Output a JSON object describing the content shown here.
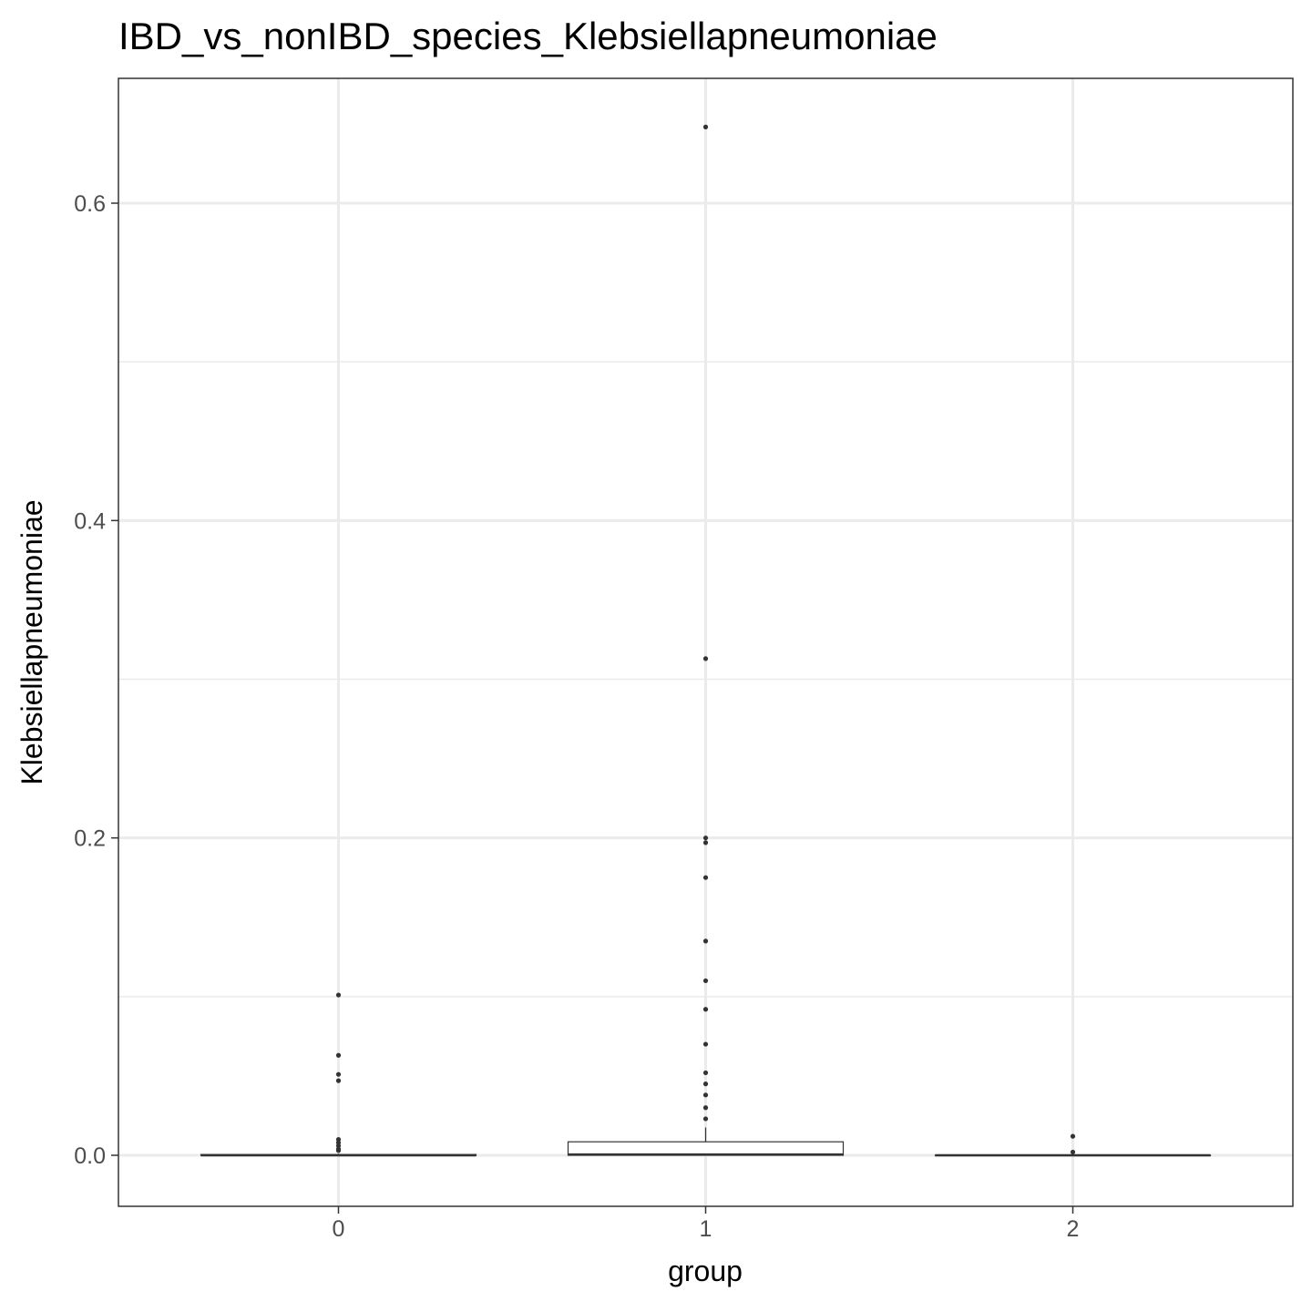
{
  "chart_data": {
    "type": "boxplot",
    "title": "IBD_vs_nonIBD_species_Klebsiellapneumoniae",
    "xlabel": "group",
    "ylabel": "Klebsiellapneumoniae",
    "categories": [
      "0",
      "1",
      "2"
    ],
    "ylim": [
      -0.032,
      0.68
    ],
    "yticks": [
      0.0,
      0.2,
      0.4,
      0.6
    ],
    "ytick_labels": [
      "0.0",
      "0.2",
      "0.4",
      "0.6"
    ],
    "grid": true,
    "boxes": [
      {
        "group": "0",
        "min": 0.0,
        "q1": 0.0,
        "median": 0.0,
        "q3": 0.0005,
        "max": 0.001,
        "outliers": [
          0.101,
          0.063,
          0.051,
          0.047,
          0.01,
          0.008,
          0.006,
          0.004,
          0.003
        ]
      },
      {
        "group": "1",
        "min": 0.0,
        "q1": 0.0,
        "median": 0.0005,
        "q3": 0.0085,
        "max": 0.0175,
        "outliers": [
          0.648,
          0.313,
          0.2,
          0.197,
          0.175,
          0.135,
          0.11,
          0.092,
          0.07,
          0.052,
          0.045,
          0.038,
          0.03,
          0.023
        ]
      },
      {
        "group": "2",
        "min": 0.0,
        "q1": 0.0,
        "median": 0.0,
        "q3": 0.0,
        "max": 0.0,
        "outliers": [
          0.012,
          0.002
        ]
      }
    ]
  }
}
